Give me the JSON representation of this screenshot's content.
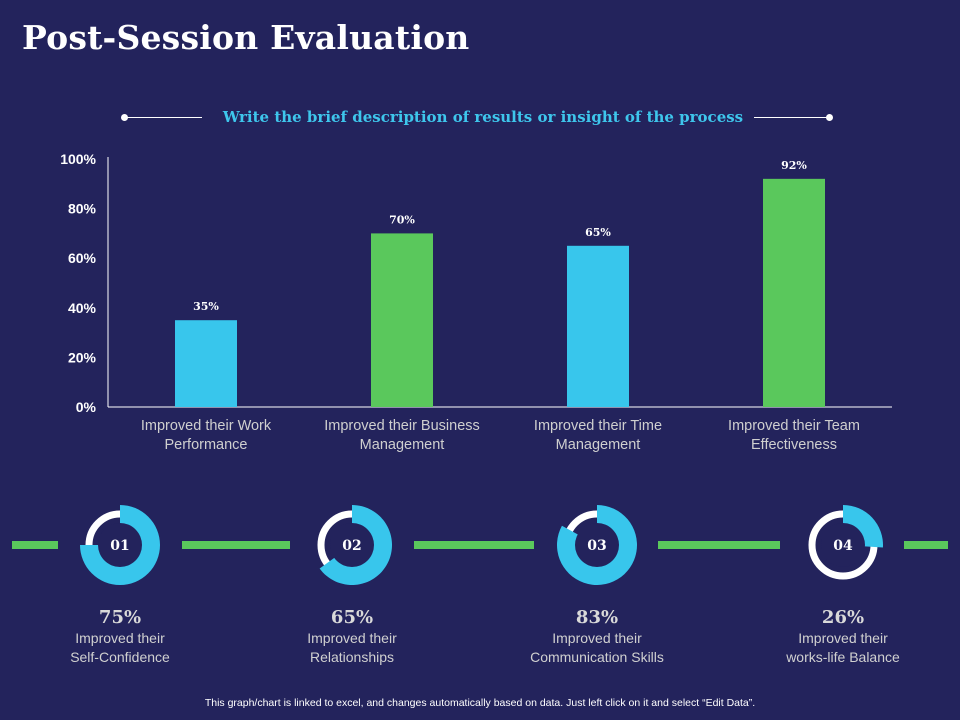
{
  "page": {
    "title": "Post-Session Evaluation",
    "subtitle": "Write the brief description of results or insight of the process",
    "footer": "This graph/chart is linked to excel, and changes automatically based on data. Just left click on it and select “Edit Data”."
  },
  "colors": {
    "background": "#23235c",
    "blue": "#38c6ec",
    "green": "#5ac85c",
    "subtitle": "#3ec6ec"
  },
  "chart_data": {
    "type": "bar",
    "categories": [
      "Improved their Work Performance",
      "Improved their Business Management",
      "Improved their Time Management",
      "Improved their Team Effectiveness"
    ],
    "category_lines": [
      [
        "Improved their Work",
        "Performance"
      ],
      [
        "Improved their Business",
        "Management"
      ],
      [
        "Improved their Time",
        "Management"
      ],
      [
        "Improved their Team",
        "Effectiveness"
      ]
    ],
    "values": [
      35,
      70,
      65,
      92
    ],
    "value_labels": [
      "35%",
      "70%",
      "65%",
      "92%"
    ],
    "bar_colors": [
      "#38c6ec",
      "#5ac85c",
      "#38c6ec",
      "#5ac85c"
    ],
    "yticks": [
      "0%",
      "20%",
      "40%",
      "60%",
      "80%",
      "100%"
    ],
    "ylim": [
      0,
      100
    ],
    "xlabel": "",
    "ylabel": "",
    "grid": false
  },
  "stats": [
    {
      "number": "01",
      "value": "75%",
      "percent": 75,
      "line1": "Improved their",
      "line2": "Self-Confidence"
    },
    {
      "number": "02",
      "value": "65%",
      "percent": 65,
      "line1": "Improved their",
      "line2": "Relationships"
    },
    {
      "number": "03",
      "value": "83%",
      "percent": 83,
      "line1": "Improved their",
      "line2": "Communication Skills"
    },
    {
      "number": "04",
      "value": "26%",
      "percent": 26,
      "line1": "Improved their",
      "line2": "works-life Balance"
    }
  ]
}
